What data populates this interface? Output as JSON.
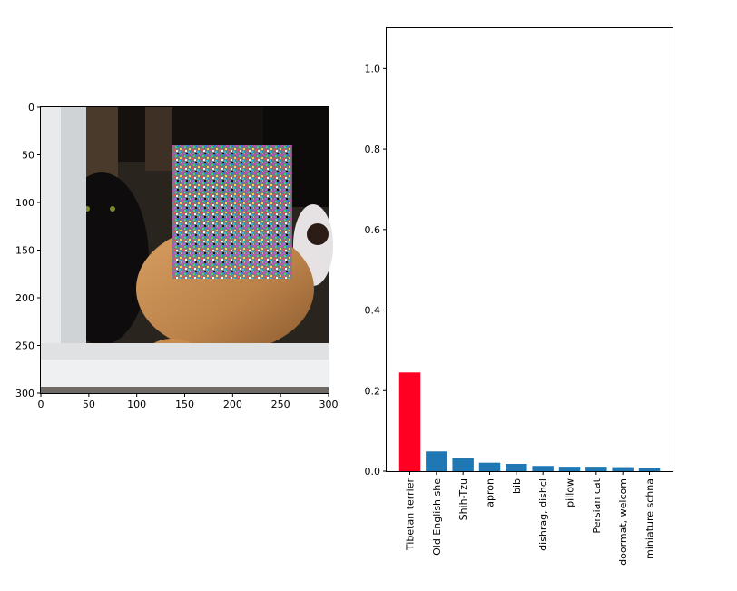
{
  "chart_data": [
    {
      "type": "image",
      "xlim": [
        0,
        300
      ],
      "ylim": [
        300,
        0
      ],
      "xticks": [
        "0",
        "50",
        "100",
        "150",
        "200",
        "250",
        "300"
      ],
      "yticks": [
        "0",
        "50",
        "100",
        "150",
        "200",
        "250",
        "300"
      ],
      "patch": {
        "type": "adversarial-noise",
        "x_range": [
          137,
          262
        ],
        "y_range": [
          40,
          180
        ]
      }
    },
    {
      "type": "bar",
      "categories": [
        "Tibetan terrier",
        "Old English she",
        "Shih-Tzu",
        "apron",
        "bib",
        "dishrag, dishcl",
        "pillow",
        "Persian cat",
        "doormat, welcom",
        "miniature schna"
      ],
      "values": [
        0.245,
        0.049,
        0.033,
        0.021,
        0.018,
        0.013,
        0.011,
        0.011,
        0.01,
        0.008
      ],
      "colors": [
        "#ff0022",
        "#1f77b4",
        "#1f77b4",
        "#1f77b4",
        "#1f77b4",
        "#1f77b4",
        "#1f77b4",
        "#1f77b4",
        "#1f77b4",
        "#1f77b4"
      ],
      "ylim": [
        0,
        1.1
      ],
      "yticks": [
        "0.0",
        "0.2",
        "0.4",
        "0.6",
        "0.8",
        "1.0"
      ],
      "ytick_values": [
        0,
        0.2,
        0.4,
        0.6,
        0.8,
        1.0
      ],
      "xlabel": "",
      "ylabel": "",
      "title": ""
    }
  ]
}
